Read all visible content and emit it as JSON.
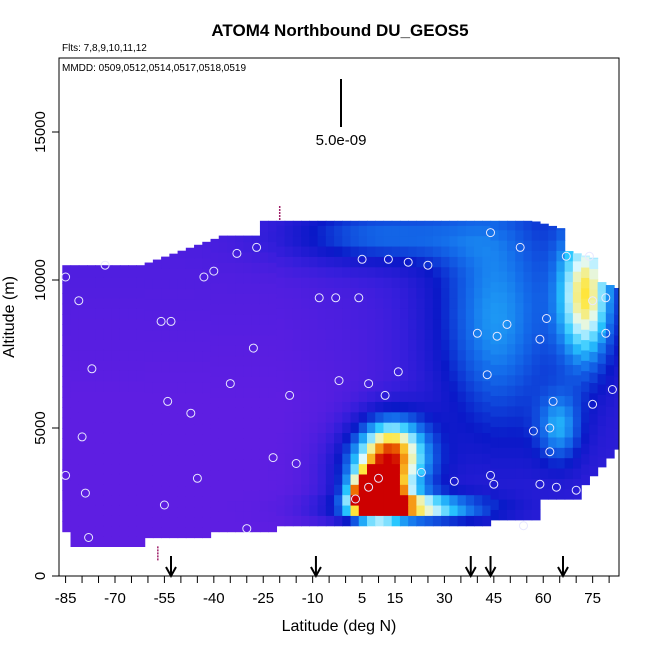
{
  "chart_data": {
    "type": "heatmap",
    "title": "ATOM4 Northbound DU_GEOS5",
    "flights_label": "Flts: 7,8,9,10,11,12",
    "dates_label": "MMDD: 0509,0512,0514,0517,0518,0519",
    "scale_label": "5.0e-09",
    "xlabel": "Latitude (deg N)",
    "ylabel": "Altitude (m)",
    "xlim": [
      -87,
      83
    ],
    "ylim": [
      0,
      17500
    ],
    "x_ticks": [
      -85,
      -70,
      -55,
      -40,
      -25,
      -10,
      5,
      15,
      30,
      45,
      60,
      75
    ],
    "x_tick_labels": [
      "-85",
      "-70",
      "-55",
      "-40",
      "-25",
      "-10",
      "5",
      "15",
      "30",
      "45",
      "60",
      "75"
    ],
    "x_minor_step": 5,
    "y_ticks": [
      0,
      5000,
      10000,
      15000
    ],
    "y_tick_labels": [
      "0",
      "5000",
      "10000",
      "15000"
    ],
    "arrows_lat": [
      -53,
      -9,
      38,
      44,
      66
    ],
    "colors": {
      "background": "#7a1fe6",
      "mid": "#1530d0",
      "high": "#ffffff",
      "peak": "#cc0000"
    },
    "hotspots": [
      {
        "lat": 9,
        "alt": 2700,
        "value": 1.0,
        "sx": 5,
        "sy": 500
      },
      {
        "lat": 12,
        "alt": 3500,
        "value": 0.6,
        "sx": 10,
        "sy": 900
      },
      {
        "lat": 20,
        "alt": 2300,
        "value": 0.55,
        "sx": 16,
        "sy": 350
      },
      {
        "lat": 14,
        "alt": 4600,
        "value": 0.45,
        "sx": 8,
        "sy": 800
      },
      {
        "lat": 45,
        "alt": 8500,
        "value": 0.35,
        "sx": 14,
        "sy": 3200
      },
      {
        "lat": 73,
        "alt": 9500,
        "value": 0.55,
        "sx": 6,
        "sy": 1800
      },
      {
        "lat": 8,
        "alt": 11500,
        "value": 0.3,
        "sx": 20,
        "sy": 700
      },
      {
        "lat": 65,
        "alt": 5000,
        "value": 0.3,
        "sx": 5,
        "sy": 900
      }
    ],
    "points": [
      [
        -85,
        10100
      ],
      [
        -81,
        9300
      ],
      [
        -77,
        7000
      ],
      [
        -80,
        4700
      ],
      [
        -85,
        3400
      ],
      [
        -79,
        2800
      ],
      [
        -78,
        1300
      ],
      [
        -73,
        10500
      ],
      [
        -56,
        8600
      ],
      [
        -53,
        8600
      ],
      [
        -54,
        5900
      ],
      [
        -55,
        2400
      ],
      [
        -45,
        3300
      ],
      [
        -47,
        5500
      ],
      [
        -43,
        10100
      ],
      [
        -40,
        10300
      ],
      [
        -33,
        10900
      ],
      [
        -27,
        11100
      ],
      [
        -28,
        7700
      ],
      [
        -35,
        6500
      ],
      [
        -22,
        4000
      ],
      [
        -30,
        1600
      ],
      [
        -17,
        6100
      ],
      [
        -15,
        3800
      ],
      [
        -8,
        9400
      ],
      [
        -3,
        9400
      ],
      [
        -2,
        6600
      ],
      [
        4,
        9400
      ],
      [
        5,
        10700
      ],
      [
        13,
        10700
      ],
      [
        19,
        10600
      ],
      [
        25,
        10500
      ],
      [
        7,
        6500
      ],
      [
        12,
        6100
      ],
      [
        16,
        6900
      ],
      [
        23,
        3500
      ],
      [
        7,
        3000
      ],
      [
        3,
        2600
      ],
      [
        10,
        3300
      ],
      [
        33,
        3200
      ],
      [
        40,
        8200
      ],
      [
        44,
        11600
      ],
      [
        43,
        6800
      ],
      [
        46,
        8100
      ],
      [
        49,
        8500
      ],
      [
        53,
        11100
      ],
      [
        59,
        8000
      ],
      [
        61,
        8700
      ],
      [
        63,
        5900
      ],
      [
        67,
        10800
      ],
      [
        74,
        10800
      ],
      [
        79,
        9400
      ],
      [
        75,
        9300
      ],
      [
        79,
        8200
      ],
      [
        75,
        5800
      ],
      [
        81,
        6300
      ],
      [
        62,
        5000
      ],
      [
        57,
        4900
      ],
      [
        62,
        4200
      ],
      [
        59,
        3100
      ],
      [
        64,
        3000
      ],
      [
        70,
        2900
      ],
      [
        45,
        3100
      ],
      [
        44,
        3400
      ],
      [
        54,
        1700
      ]
    ]
  }
}
